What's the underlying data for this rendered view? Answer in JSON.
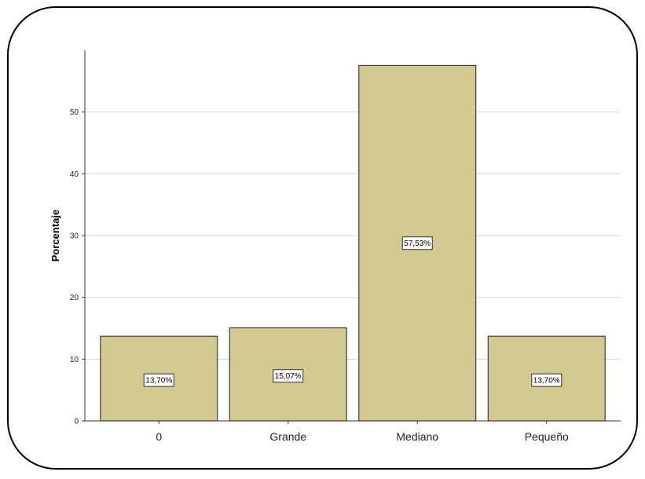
{
  "chart_data": {
    "type": "bar",
    "title": "",
    "xlabel": "",
    "ylabel": "Porcentaje",
    "categories": [
      "0",
      "Grande",
      "Mediano",
      "Pequeño"
    ],
    "values": [
      13.7,
      15.07,
      57.53,
      13.7
    ],
    "data_labels": [
      "13,70%",
      "15,07%",
      "57,53%",
      "13,70%"
    ],
    "yticks": [
      0,
      10,
      20,
      30,
      40,
      50
    ],
    "ytick_labels": [
      "0",
      "10",
      "20",
      "30",
      "40",
      "50"
    ],
    "ylim": [
      0,
      60
    ],
    "grid": true,
    "bar_color": "#d1c990",
    "bar_edge_color": "#3c3c3c",
    "grid_color": "#d4d4d4"
  }
}
